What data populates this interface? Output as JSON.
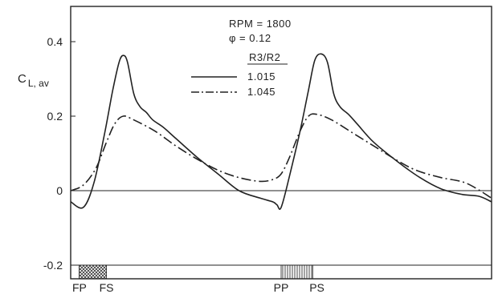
{
  "chart_data": {
    "type": "line",
    "title": "",
    "ylabel": {
      "main": "C",
      "sub": "L, av"
    },
    "xlabel": "",
    "ylim": [
      -0.22,
      0.5
    ],
    "xlim": [
      0,
      1
    ],
    "y_ticks": [
      {
        "value": 0.4,
        "label": "0.4"
      },
      {
        "value": 0.2,
        "label": "0.2"
      },
      {
        "value": 0,
        "label": "0"
      },
      {
        "value": -0.2,
        "label": "-0.2"
      }
    ],
    "zero_line": true,
    "grid": false,
    "annotations": {
      "rpm": "RPM = 1800",
      "phi": "φ = 0.12",
      "legend_title": "R3/R2"
    },
    "legend_placement": "top-center",
    "series": [
      {
        "name": "1.015",
        "style": "solid",
        "points": [
          [
            0,
            -0.03
          ],
          [
            0.03,
            -0.045
          ],
          [
            0.055,
            0.02
          ],
          [
            0.08,
            0.15
          ],
          [
            0.1,
            0.27
          ],
          [
            0.115,
            0.345
          ],
          [
            0.125,
            0.363
          ],
          [
            0.135,
            0.345
          ],
          [
            0.15,
            0.26
          ],
          [
            0.165,
            0.225
          ],
          [
            0.18,
            0.21
          ],
          [
            0.195,
            0.19
          ],
          [
            0.22,
            0.17
          ],
          [
            0.25,
            0.14
          ],
          [
            0.3,
            0.09
          ],
          [
            0.35,
            0.045
          ],
          [
            0.4,
            0.0
          ],
          [
            0.45,
            -0.02
          ],
          [
            0.48,
            -0.03
          ],
          [
            0.49,
            -0.038
          ],
          [
            0.5,
            -0.045
          ],
          [
            0.52,
            0.04
          ],
          [
            0.545,
            0.16
          ],
          [
            0.565,
            0.27
          ],
          [
            0.58,
            0.35
          ],
          [
            0.595,
            0.367
          ],
          [
            0.61,
            0.345
          ],
          [
            0.625,
            0.26
          ],
          [
            0.64,
            0.225
          ],
          [
            0.66,
            0.205
          ],
          [
            0.68,
            0.18
          ],
          [
            0.72,
            0.13
          ],
          [
            0.78,
            0.075
          ],
          [
            0.83,
            0.035
          ],
          [
            0.88,
            0.005
          ],
          [
            0.93,
            -0.01
          ],
          [
            0.97,
            -0.015
          ],
          [
            1.0,
            -0.03
          ]
        ]
      },
      {
        "name": "1.045",
        "style": "dashdot",
        "points": [
          [
            0,
            0.0
          ],
          [
            0.03,
            0.015
          ],
          [
            0.06,
            0.06
          ],
          [
            0.085,
            0.13
          ],
          [
            0.105,
            0.18
          ],
          [
            0.125,
            0.2
          ],
          [
            0.15,
            0.19
          ],
          [
            0.2,
            0.16
          ],
          [
            0.25,
            0.12
          ],
          [
            0.3,
            0.085
          ],
          [
            0.35,
            0.055
          ],
          [
            0.4,
            0.035
          ],
          [
            0.45,
            0.025
          ],
          [
            0.48,
            0.03
          ],
          [
            0.5,
            0.045
          ],
          [
            0.52,
            0.09
          ],
          [
            0.545,
            0.16
          ],
          [
            0.565,
            0.2
          ],
          [
            0.585,
            0.205
          ],
          [
            0.62,
            0.19
          ],
          [
            0.67,
            0.155
          ],
          [
            0.72,
            0.12
          ],
          [
            0.77,
            0.085
          ],
          [
            0.82,
            0.055
          ],
          [
            0.88,
            0.035
          ],
          [
            0.94,
            0.02
          ],
          [
            1.0,
            -0.02
          ]
        ]
      }
    ],
    "blade_markers": [
      {
        "label": "FP",
        "x": 0.0
      },
      {
        "label": "FS",
        "x": 0.085
      },
      {
        "label": "PP",
        "x": 0.5
      },
      {
        "label": "PS",
        "x": 0.585
      }
    ],
    "blade_bands": [
      {
        "x0": 0.02,
        "x1": 0.085,
        "pattern": "crosshatch"
      },
      {
        "x0": 0.5,
        "x1": 0.575,
        "pattern": "vertical"
      }
    ]
  }
}
